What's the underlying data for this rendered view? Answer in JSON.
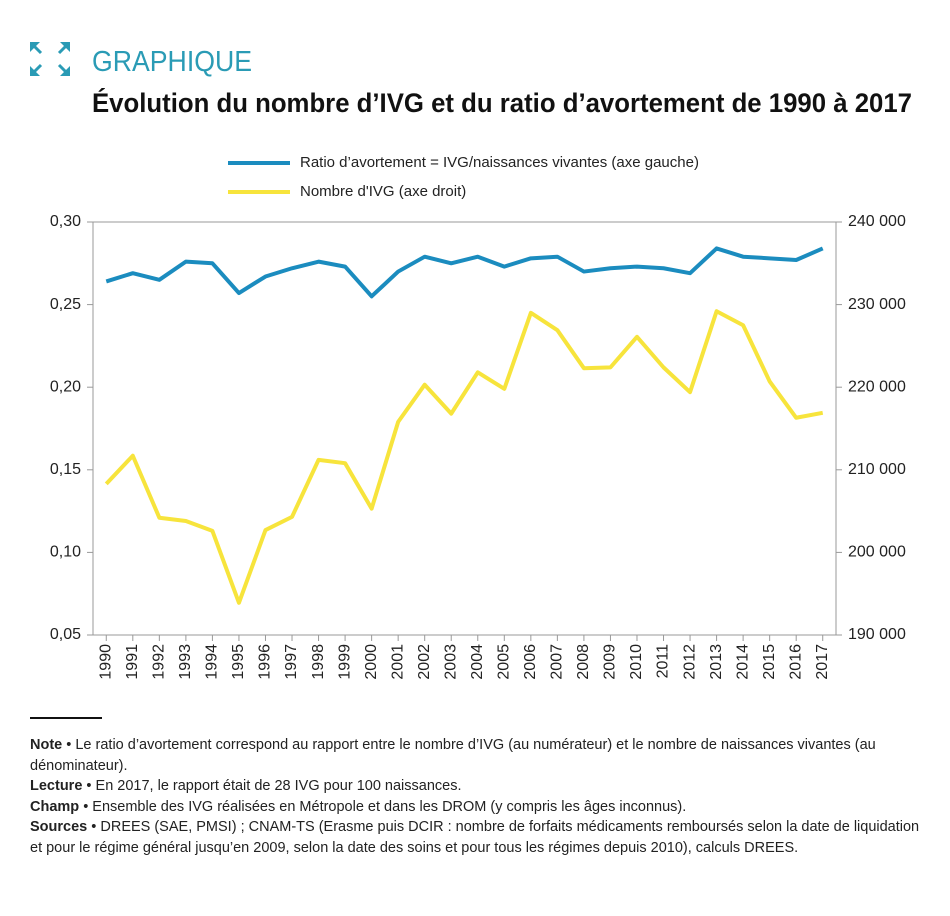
{
  "chart_data": {
    "type": "line",
    "kicker": "GRAPHIQUE",
    "title": "Évolution du nombre d’IVG et du ratio d’avortement de 1990 à 2017",
    "categories": [
      "1990",
      "1991",
      "1992",
      "1993",
      "1994",
      "1995",
      "1996",
      "1997",
      "1998",
      "1999",
      "2000",
      "2001",
      "2002",
      "2003",
      "2004",
      "2005",
      "2006",
      "2007",
      "2008",
      "2009",
      "2010",
      "2011",
      "2012",
      "2013",
      "2014",
      "2015",
      "2016",
      "2017"
    ],
    "series": [
      {
        "name": "Ratio d’avortement = IVG/naissances vivantes (axe gauche)",
        "color": "#1b8cbf",
        "axis": "y",
        "values": [
          0.264,
          0.269,
          0.265,
          0.276,
          0.275,
          0.257,
          0.267,
          0.272,
          0.276,
          0.273,
          0.255,
          0.27,
          0.279,
          0.275,
          0.279,
          0.273,
          0.278,
          0.279,
          0.27,
          0.272,
          0.273,
          0.272,
          0.269,
          0.284,
          0.279,
          0.278,
          0.277,
          0.284
        ]
      },
      {
        "name": "Nombre d'IVG (axe droit)",
        "color": "#f7e43c",
        "axis": "y2",
        "values": [
          208300,
          211700,
          204200,
          203800,
          202600,
          193900,
          202700,
          204300,
          211200,
          210800,
          205300,
          215800,
          220300,
          216800,
          221800,
          219800,
          229000,
          226900,
          222300,
          222400,
          226100,
          222400,
          219400,
          229200,
          227500,
          220700,
          216300,
          216900
        ]
      }
    ],
    "ylim": [
      0.05,
      0.3
    ],
    "yticks": [
      {
        "value": 0.05,
        "label": "0,05"
      },
      {
        "value": 0.1,
        "label": "0,10"
      },
      {
        "value": 0.15,
        "label": "0,15"
      },
      {
        "value": 0.2,
        "label": "0,20"
      },
      {
        "value": 0.25,
        "label": "0,25"
      },
      {
        "value": 0.3,
        "label": "0,30"
      }
    ],
    "y2lim": [
      190000,
      240000
    ],
    "y2ticks": [
      {
        "value": 190000,
        "label": "190 000"
      },
      {
        "value": 200000,
        "label": "200 000"
      },
      {
        "value": 210000,
        "label": "210 000"
      },
      {
        "value": 220000,
        "label": "220 000"
      },
      {
        "value": 230000,
        "label": "230 000"
      },
      {
        "value": 240000,
        "label": "240 000"
      }
    ],
    "grid": false,
    "notes": [
      {
        "label": "Note",
        "text": "• Le ratio d’avortement correspond au rapport entre le nombre d’IVG (au numérateur) et le nombre de naissances vivantes (au dénominateur)."
      },
      {
        "label": "Lecture",
        "text": "• En 2017, le rapport était de 28 IVG pour 100 naissances."
      },
      {
        "label": "Champ",
        "text": "• Ensemble des IVG réalisées en Métropole et dans les DROM (y compris les âges inconnus)."
      },
      {
        "label": "Sources",
        "text": "• DREES (SAE, PMSI) ; CNAM-TS (Erasme puis DCIR : nombre de forfaits médicaments remboursés selon la date de liquidation et pour le régime général jusqu’en 2009, selon la date des soins et pour tous les régimes depuis 2010), calculs DREES."
      }
    ]
  }
}
